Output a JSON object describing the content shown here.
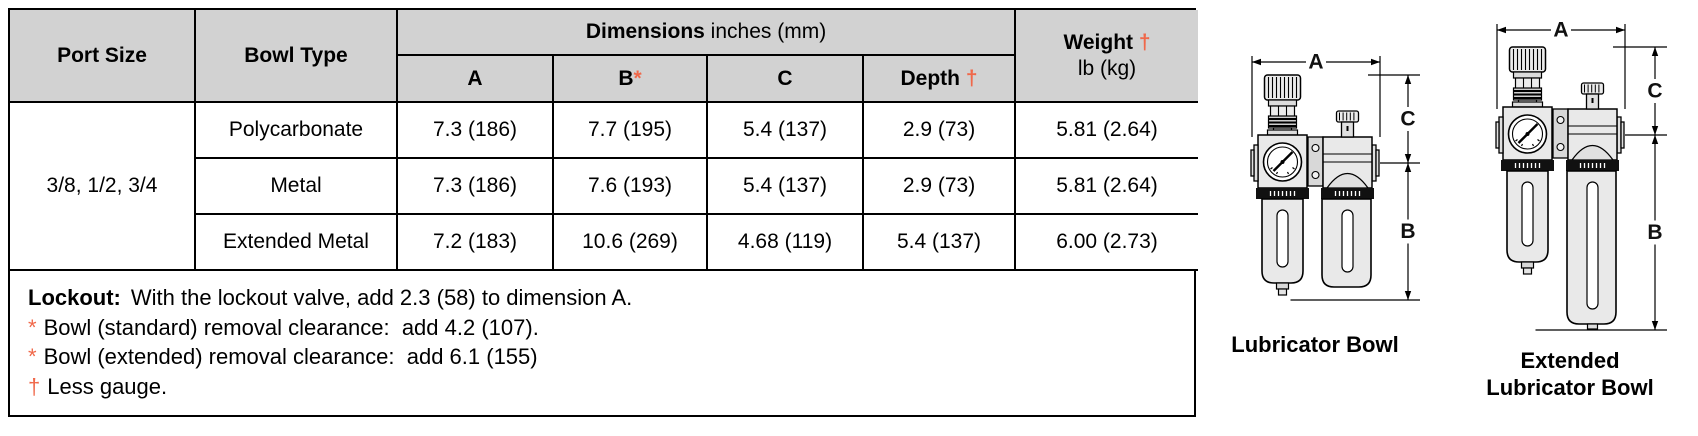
{
  "accent_color": "#F0684A",
  "table": {
    "header": {
      "port_size": "Port Size",
      "bowl_type": "Bowl Type",
      "dimensions_title": "Dimensions",
      "dimensions_units": " inches (mm)",
      "weight_title": "Weight ",
      "weight_marker": "†",
      "weight_units": "lb (kg)",
      "columns": {
        "a": "A",
        "b": "B",
        "b_marker": "*",
        "c": "C",
        "depth": "Depth ",
        "depth_marker": "†"
      }
    },
    "port_size_value": "3/8, 1/2, 3/4",
    "rows": [
      {
        "bowl_type": "Polycarbonate",
        "a": "7.3 (186)",
        "b": "7.7 (195)",
        "c": "5.4 (137)",
        "depth": "2.9 (73)",
        "weight": "5.81 (2.64)"
      },
      {
        "bowl_type": "Metal",
        "a": "7.3 (186)",
        "b": "7.6 (193)",
        "c": "5.4 (137)",
        "depth": "2.9 (73)",
        "weight": "5.81 (2.64)"
      },
      {
        "bowl_type": "Extended Metal",
        "a": "7.2 (183)",
        "b": "10.6 (269)",
        "c": "4.68 (119)",
        "depth": "5.4 (137)",
        "weight": "6.00 (2.73)"
      }
    ],
    "notes": [
      {
        "marker": "Lockout:",
        "text": "With the lockout valve, add 2.3 (58) to dimension A."
      },
      {
        "marker": "*",
        "text": "Bowl (standard) removal clearance:  add 4.2 (107)."
      },
      {
        "marker": "*",
        "text": "Bowl (extended) removal clearance:  add 6.1 (155)"
      },
      {
        "marker": "†",
        "text": "Less gauge."
      }
    ]
  },
  "diagrams": [
    {
      "caption_line1": "Lubricator Bowl",
      "caption_line2": "",
      "dim_labels": {
        "a": "A",
        "b": "B",
        "c": "C"
      }
    },
    {
      "caption_line1": "Extended",
      "caption_line2": "Lubricator Bowl",
      "dim_labels": {
        "a": "A",
        "b": "B",
        "c": "C"
      }
    }
  ]
}
